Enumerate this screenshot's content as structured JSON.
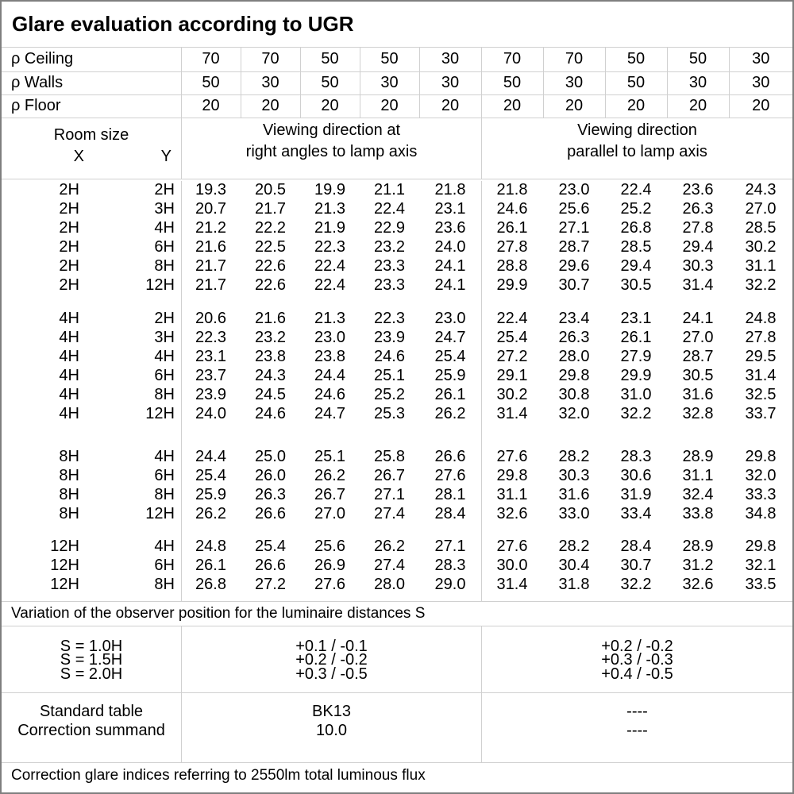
{
  "title": "Glare evaluation according to UGR",
  "colors": {
    "grid_line": "#d0d0d0",
    "outer_border": "#7f7f7f",
    "text": "#000000",
    "background": "#ffffff"
  },
  "reflectance_rows": [
    {
      "label": "ρ Ceiling",
      "values": [
        "70",
        "70",
        "50",
        "50",
        "30",
        "70",
        "70",
        "50",
        "50",
        "30"
      ]
    },
    {
      "label": "ρ Walls",
      "values": [
        "50",
        "30",
        "50",
        "30",
        "30",
        "50",
        "30",
        "50",
        "30",
        "30"
      ]
    },
    {
      "label": "ρ Floor",
      "values": [
        "20",
        "20",
        "20",
        "20",
        "20",
        "20",
        "20",
        "20",
        "20",
        "20"
      ]
    }
  ],
  "header": {
    "room_size": "Room size",
    "x": "X",
    "y": "Y",
    "group1": [
      "Viewing direction at",
      "right angles to lamp axis"
    ],
    "group2": [
      "Viewing direction",
      "parallel to lamp axis"
    ]
  },
  "ugr_blocks": [
    {
      "x": "2H",
      "rows": [
        {
          "y": "2H",
          "ra": [
            "19.3",
            "20.5",
            "19.9",
            "21.1",
            "21.8"
          ],
          "par": [
            "21.8",
            "23.0",
            "22.4",
            "23.6",
            "24.3"
          ]
        },
        {
          "y": "3H",
          "ra": [
            "20.7",
            "21.7",
            "21.3",
            "22.4",
            "23.1"
          ],
          "par": [
            "24.6",
            "25.6",
            "25.2",
            "26.3",
            "27.0"
          ]
        },
        {
          "y": "4H",
          "ra": [
            "21.2",
            "22.2",
            "21.9",
            "22.9",
            "23.6"
          ],
          "par": [
            "26.1",
            "27.1",
            "26.8",
            "27.8",
            "28.5"
          ]
        },
        {
          "y": "6H",
          "ra": [
            "21.6",
            "22.5",
            "22.3",
            "23.2",
            "24.0"
          ],
          "par": [
            "27.8",
            "28.7",
            "28.5",
            "29.4",
            "30.2"
          ]
        },
        {
          "y": "8H",
          "ra": [
            "21.7",
            "22.6",
            "22.4",
            "23.3",
            "24.1"
          ],
          "par": [
            "28.8",
            "29.6",
            "29.4",
            "30.3",
            "31.1"
          ]
        },
        {
          "y": "12H",
          "ra": [
            "21.7",
            "22.6",
            "22.4",
            "23.3",
            "24.1"
          ],
          "par": [
            "29.9",
            "30.7",
            "30.5",
            "31.4",
            "32.2"
          ]
        }
      ]
    },
    {
      "x": "4H",
      "rows": [
        {
          "y": "2H",
          "ra": [
            "20.6",
            "21.6",
            "21.3",
            "22.3",
            "23.0"
          ],
          "par": [
            "22.4",
            "23.4",
            "23.1",
            "24.1",
            "24.8"
          ]
        },
        {
          "y": "3H",
          "ra": [
            "22.3",
            "23.2",
            "23.0",
            "23.9",
            "24.7"
          ],
          "par": [
            "25.4",
            "26.3",
            "26.1",
            "27.0",
            "27.8"
          ]
        },
        {
          "y": "4H",
          "ra": [
            "23.1",
            "23.8",
            "23.8",
            "24.6",
            "25.4"
          ],
          "par": [
            "27.2",
            "28.0",
            "27.9",
            "28.7",
            "29.5"
          ]
        },
        {
          "y": "6H",
          "ra": [
            "23.7",
            "24.3",
            "24.4",
            "25.1",
            "25.9"
          ],
          "par": [
            "29.1",
            "29.8",
            "29.9",
            "30.5",
            "31.4"
          ]
        },
        {
          "y": "8H",
          "ra": [
            "23.9",
            "24.5",
            "24.6",
            "25.2",
            "26.1"
          ],
          "par": [
            "30.2",
            "30.8",
            "31.0",
            "31.6",
            "32.5"
          ]
        },
        {
          "y": "12H",
          "ra": [
            "24.0",
            "24.6",
            "24.7",
            "25.3",
            "26.2"
          ],
          "par": [
            "31.4",
            "32.0",
            "32.2",
            "32.8",
            "33.7"
          ]
        }
      ]
    },
    {
      "x": "8H",
      "rows": [
        {
          "y": "4H",
          "ra": [
            "24.4",
            "25.0",
            "25.1",
            "25.8",
            "26.6"
          ],
          "par": [
            "27.6",
            "28.2",
            "28.3",
            "28.9",
            "29.8"
          ]
        },
        {
          "y": "6H",
          "ra": [
            "25.4",
            "26.0",
            "26.2",
            "26.7",
            "27.6"
          ],
          "par": [
            "29.8",
            "30.3",
            "30.6",
            "31.1",
            "32.0"
          ]
        },
        {
          "y": "8H",
          "ra": [
            "25.9",
            "26.3",
            "26.7",
            "27.1",
            "28.1"
          ],
          "par": [
            "31.1",
            "31.6",
            "31.9",
            "32.4",
            "33.3"
          ]
        },
        {
          "y": "12H",
          "ra": [
            "26.2",
            "26.6",
            "27.0",
            "27.4",
            "28.4"
          ],
          "par": [
            "32.6",
            "33.0",
            "33.4",
            "33.8",
            "34.8"
          ]
        }
      ]
    },
    {
      "x": "12H",
      "rows": [
        {
          "y": "4H",
          "ra": [
            "24.8",
            "25.4",
            "25.6",
            "26.2",
            "27.1"
          ],
          "par": [
            "27.6",
            "28.2",
            "28.4",
            "28.9",
            "29.8"
          ]
        },
        {
          "y": "6H",
          "ra": [
            "26.1",
            "26.6",
            "26.9",
            "27.4",
            "28.3"
          ],
          "par": [
            "30.0",
            "30.4",
            "30.7",
            "31.2",
            "32.1"
          ]
        },
        {
          "y": "8H",
          "ra": [
            "26.8",
            "27.2",
            "27.6",
            "28.0",
            "29.0"
          ],
          "par": [
            "31.4",
            "31.8",
            "32.2",
            "32.6",
            "33.5"
          ]
        }
      ]
    }
  ],
  "variation_note": "Variation of the observer position for the luminaire distances S",
  "spacing_rows": [
    {
      "label": "S = 1.0H",
      "right_angles": "+0.1 / -0.1",
      "parallel": "+0.2 / -0.2"
    },
    {
      "label": "S = 1.5H",
      "right_angles": "+0.2 / -0.2",
      "parallel": "+0.3 / -0.3"
    },
    {
      "label": "S = 2.0H",
      "right_angles": "+0.3 / -0.5",
      "parallel": "+0.4 / -0.5"
    }
  ],
  "summary_rows": [
    {
      "label": "Standard table",
      "right_angles": "BK13",
      "parallel": "----"
    },
    {
      "label": "Correction summand",
      "right_angles": "10.0",
      "parallel": "----"
    }
  ],
  "footer_note": "Correction glare indices referring to 2550lm total luminous flux"
}
